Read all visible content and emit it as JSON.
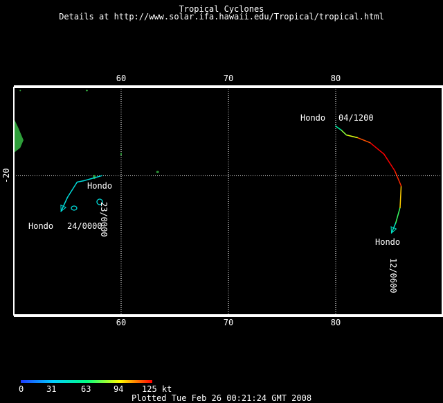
{
  "header": {
    "title": "Tropical Cyclones",
    "details": "Details at http://www.solar.ifa.hawaii.edu/Tropical/tropical.html"
  },
  "map": {
    "lon_range": [
      50,
      90
    ],
    "lat_range": [
      -31,
      -13
    ],
    "lon_ticks": [
      60,
      70,
      80
    ],
    "lat_ticks": [
      -20
    ],
    "lon_tick_labels": [
      "60",
      "70",
      "80"
    ],
    "lat_tick_label": "-20",
    "grid": "dotted",
    "land_color": "#2e9e3a",
    "frame_color": "#ffffff"
  },
  "tracks": [
    {
      "name": "Hondo",
      "label_a": "Hondo",
      "label_a_time": "04/1200",
      "label_b": "Hondo",
      "label_b_time": "12/0600",
      "points": [
        {
          "lon": 80.0,
          "lat": -16.1,
          "kt": 45
        },
        {
          "lon": 80.5,
          "lat": -16.4,
          "kt": 55
        },
        {
          "lon": 81.0,
          "lat": -16.8,
          "kt": 80
        },
        {
          "lon": 82.0,
          "lat": -17.0,
          "kt": 90
        },
        {
          "lon": 83.2,
          "lat": -17.4,
          "kt": 115
        },
        {
          "lon": 84.5,
          "lat": -18.3,
          "kt": 125
        },
        {
          "lon": 85.5,
          "lat": -19.6,
          "kt": 125
        },
        {
          "lon": 86.1,
          "lat": -20.8,
          "kt": 120
        },
        {
          "lon": 86.0,
          "lat": -22.5,
          "kt": 100
        },
        {
          "lon": 85.6,
          "lat": -23.7,
          "kt": 70
        },
        {
          "lon": 85.2,
          "lat": -24.5,
          "kt": 45
        }
      ]
    },
    {
      "name": "Hondo",
      "label_a": "Hondo",
      "label_a_time": "23/0000",
      "label_b": "Hondo",
      "label_b_time": "24/0000",
      "points": [
        {
          "lon": 58.2,
          "lat": -20.0,
          "kt": 40
        },
        {
          "lon": 56.5,
          "lat": -20.4,
          "kt": 40
        },
        {
          "lon": 55.9,
          "lat": -20.5,
          "kt": 40
        },
        {
          "lon": 55.0,
          "lat": -21.7,
          "kt": 40
        },
        {
          "lon": 54.4,
          "lat": -22.8,
          "kt": 40
        }
      ]
    }
  ],
  "land": [
    {
      "name": "madagascar-coast",
      "lon": 50.0,
      "lat": -16.9
    },
    {
      "name": "mauritius",
      "lon": 57.5,
      "lat": -20.1
    },
    {
      "name": "reunion",
      "lon": 55.5,
      "lat": -21.2
    },
    {
      "name": "rodrigues",
      "lon": 63.4,
      "lat": -19.7
    },
    {
      "name": "agalega",
      "lon": 56.8,
      "lat": -13.3
    }
  ],
  "colorbar": {
    "ticks": [
      "0",
      "31",
      "63",
      "94",
      "125 kt"
    ],
    "tick_values": [
      0,
      31,
      63,
      94,
      125
    ],
    "max": 125
  },
  "footer": {
    "plotted": "Plotted Tue Feb 26 00:21:24 GMT 2008"
  }
}
